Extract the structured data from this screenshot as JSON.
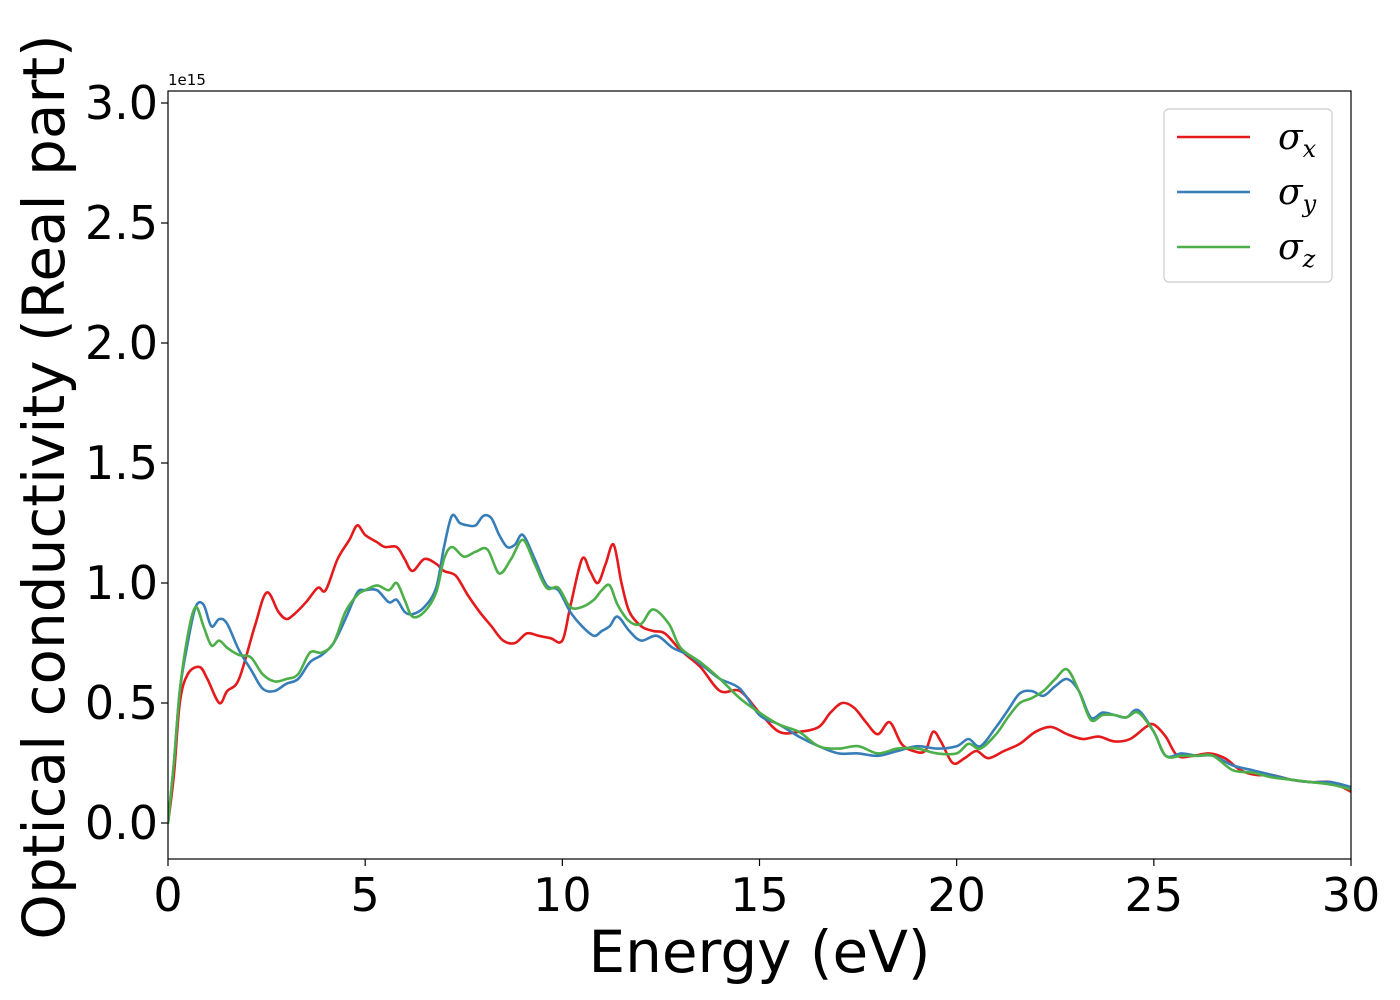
{
  "chart_data": {
    "type": "line",
    "title": "",
    "xlabel": "Energy (eV)",
    "ylabel": "Optical conductivity (Real part)",
    "y_offset_text": "1e15",
    "xlim": [
      0,
      30
    ],
    "ylim": [
      -0.15,
      3.05
    ],
    "xticks": [
      0,
      5,
      10,
      15,
      20,
      25,
      30
    ],
    "xtick_labels": [
      "0",
      "5",
      "10",
      "15",
      "20",
      "25",
      "30"
    ],
    "yticks": [
      0.0,
      0.5,
      1.0,
      1.5,
      2.0,
      2.5,
      3.0
    ],
    "ytick_labels": [
      "0.0",
      "0.5",
      "1.0",
      "1.5",
      "2.0",
      "2.5",
      "3.0"
    ],
    "grid": false,
    "legend_position": "top-right",
    "series": [
      {
        "name": "x",
        "color": "#e41a1c",
        "x": [
          0,
          0.15,
          0.3,
          0.5,
          0.8,
          1.0,
          1.3,
          1.5,
          1.8,
          2.2,
          2.5,
          2.8,
          3.0,
          3.2,
          3.5,
          3.8,
          4.0,
          4.3,
          4.6,
          4.8,
          5.0,
          5.3,
          5.5,
          5.8,
          6.0,
          6.2,
          6.5,
          6.8,
          7.0,
          7.3,
          7.6,
          7.9,
          8.2,
          8.5,
          8.8,
          9.1,
          9.4,
          9.7,
          10.0,
          10.2,
          10.5,
          10.7,
          10.9,
          11.1,
          11.3,
          11.5,
          11.7,
          12.0,
          12.3,
          12.6,
          13.0,
          13.5,
          14.0,
          14.5,
          15.0,
          15.5,
          16.0,
          16.5,
          16.8,
          17.1,
          17.4,
          17.7,
          18.0,
          18.3,
          18.6,
          18.9,
          19.2,
          19.4,
          19.6,
          19.9,
          20.2,
          20.5,
          20.8,
          21.2,
          21.6,
          22.0,
          22.4,
          22.8,
          23.2,
          23.6,
          24.0,
          24.4,
          24.8,
          25.0,
          25.3,
          25.6,
          26.0,
          26.4,
          26.8,
          27.2,
          27.6,
          28.0,
          28.5,
          29.0,
          29.5,
          30.0
        ],
        "values": [
          0.0,
          0.2,
          0.5,
          0.62,
          0.65,
          0.6,
          0.5,
          0.55,
          0.6,
          0.82,
          0.96,
          0.88,
          0.85,
          0.87,
          0.92,
          0.98,
          0.97,
          1.1,
          1.18,
          1.24,
          1.2,
          1.17,
          1.15,
          1.15,
          1.1,
          1.05,
          1.1,
          1.08,
          1.05,
          1.03,
          0.95,
          0.88,
          0.82,
          0.76,
          0.75,
          0.79,
          0.78,
          0.77,
          0.76,
          0.9,
          1.1,
          1.05,
          1.0,
          1.08,
          1.16,
          1.0,
          0.88,
          0.82,
          0.8,
          0.79,
          0.72,
          0.65,
          0.55,
          0.55,
          0.46,
          0.38,
          0.38,
          0.4,
          0.46,
          0.5,
          0.48,
          0.42,
          0.37,
          0.42,
          0.33,
          0.3,
          0.3,
          0.38,
          0.34,
          0.25,
          0.27,
          0.3,
          0.27,
          0.3,
          0.33,
          0.38,
          0.4,
          0.37,
          0.35,
          0.36,
          0.34,
          0.35,
          0.4,
          0.41,
          0.36,
          0.28,
          0.28,
          0.29,
          0.27,
          0.22,
          0.2,
          0.2,
          0.18,
          0.17,
          0.17,
          0.13
        ]
      },
      {
        "name": "y",
        "color": "#377eb8",
        "x": [
          0,
          0.15,
          0.3,
          0.5,
          0.7,
          0.9,
          1.1,
          1.3,
          1.5,
          1.8,
          2.1,
          2.4,
          2.7,
          3.0,
          3.3,
          3.6,
          3.9,
          4.2,
          4.5,
          4.8,
          5.0,
          5.3,
          5.6,
          5.8,
          6.0,
          6.2,
          6.5,
          6.8,
          7.0,
          7.2,
          7.4,
          7.6,
          7.8,
          8.0,
          8.2,
          8.4,
          8.6,
          8.8,
          9.0,
          9.3,
          9.6,
          9.9,
          10.2,
          10.5,
          10.8,
          11.0,
          11.2,
          11.4,
          11.7,
          12.0,
          12.4,
          12.8,
          13.2,
          13.6,
          14.0,
          14.5,
          15.0,
          15.5,
          16.0,
          16.5,
          17.0,
          17.5,
          18.0,
          18.5,
          19.0,
          19.5,
          20.0,
          20.3,
          20.6,
          21.0,
          21.3,
          21.6,
          21.9,
          22.2,
          22.5,
          22.8,
          23.1,
          23.4,
          23.7,
          24.0,
          24.3,
          24.6,
          25.0,
          25.3,
          25.7,
          26.1,
          26.5,
          27.0,
          27.5,
          28.0,
          28.5,
          29.0,
          29.5,
          30.0
        ],
        "values": [
          0.0,
          0.25,
          0.55,
          0.75,
          0.9,
          0.91,
          0.82,
          0.85,
          0.83,
          0.72,
          0.64,
          0.56,
          0.55,
          0.58,
          0.6,
          0.67,
          0.7,
          0.75,
          0.85,
          0.96,
          0.97,
          0.97,
          0.92,
          0.93,
          0.88,
          0.87,
          0.9,
          0.98,
          1.15,
          1.28,
          1.25,
          1.24,
          1.24,
          1.28,
          1.27,
          1.2,
          1.15,
          1.16,
          1.2,
          1.1,
          0.99,
          0.97,
          0.88,
          0.82,
          0.78,
          0.8,
          0.82,
          0.86,
          0.8,
          0.76,
          0.78,
          0.73,
          0.7,
          0.65,
          0.6,
          0.56,
          0.45,
          0.41,
          0.36,
          0.32,
          0.29,
          0.29,
          0.28,
          0.3,
          0.32,
          0.31,
          0.32,
          0.35,
          0.32,
          0.4,
          0.47,
          0.54,
          0.55,
          0.53,
          0.57,
          0.6,
          0.55,
          0.44,
          0.46,
          0.45,
          0.44,
          0.47,
          0.38,
          0.28,
          0.29,
          0.28,
          0.28,
          0.24,
          0.22,
          0.2,
          0.18,
          0.17,
          0.17,
          0.15
        ]
      },
      {
        "name": "z",
        "color": "#4daf4a",
        "x": [
          0,
          0.15,
          0.3,
          0.5,
          0.7,
          0.9,
          1.1,
          1.3,
          1.5,
          1.8,
          2.1,
          2.4,
          2.7,
          3.0,
          3.3,
          3.6,
          3.9,
          4.2,
          4.5,
          4.8,
          5.0,
          5.3,
          5.6,
          5.8,
          6.0,
          6.2,
          6.5,
          6.8,
          7.0,
          7.2,
          7.5,
          7.8,
          8.1,
          8.4,
          8.7,
          9.0,
          9.3,
          9.6,
          9.9,
          10.2,
          10.5,
          10.8,
          11.0,
          11.2,
          11.4,
          11.7,
          12.0,
          12.3,
          12.7,
          13.0,
          13.5,
          14.0,
          14.5,
          15.0,
          15.5,
          16.0,
          16.5,
          17.0,
          17.5,
          18.0,
          18.5,
          19.0,
          19.5,
          20.0,
          20.3,
          20.6,
          21.0,
          21.3,
          21.6,
          21.9,
          22.2,
          22.5,
          22.8,
          23.1,
          23.4,
          23.7,
          24.0,
          24.3,
          24.6,
          25.0,
          25.3,
          25.7,
          26.1,
          26.5,
          27.0,
          27.5,
          28.0,
          28.5,
          29.0,
          29.5,
          30.0
        ],
        "values": [
          0.0,
          0.25,
          0.55,
          0.78,
          0.9,
          0.82,
          0.74,
          0.76,
          0.73,
          0.7,
          0.69,
          0.62,
          0.59,
          0.6,
          0.62,
          0.71,
          0.71,
          0.75,
          0.88,
          0.95,
          0.97,
          0.99,
          0.97,
          1.0,
          0.93,
          0.86,
          0.88,
          0.96,
          1.1,
          1.15,
          1.11,
          1.13,
          1.14,
          1.04,
          1.1,
          1.18,
          1.08,
          0.98,
          0.98,
          0.9,
          0.9,
          0.93,
          0.97,
          0.99,
          0.91,
          0.84,
          0.83,
          0.89,
          0.83,
          0.73,
          0.67,
          0.6,
          0.52,
          0.46,
          0.41,
          0.38,
          0.32,
          0.31,
          0.32,
          0.29,
          0.31,
          0.31,
          0.29,
          0.29,
          0.33,
          0.31,
          0.37,
          0.44,
          0.5,
          0.52,
          0.55,
          0.6,
          0.64,
          0.55,
          0.43,
          0.45,
          0.45,
          0.44,
          0.46,
          0.38,
          0.28,
          0.28,
          0.28,
          0.28,
          0.22,
          0.21,
          0.19,
          0.18,
          0.17,
          0.16,
          0.14
        ]
      }
    ]
  }
}
